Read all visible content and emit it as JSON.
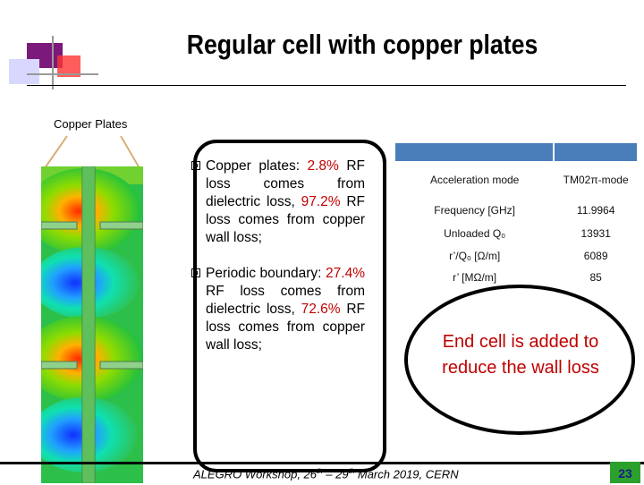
{
  "title": "Regular cell with copper plates",
  "copper_label": "Copper Plates",
  "bullets": {
    "b1_a": "Copper  plates: ",
    "b1_b": "2.8%",
    "b1_c": " RF loss comes from dielectric loss, ",
    "b1_d": "97.2%",
    "b1_e": " RF loss comes from copper wall loss;",
    "b2_a": "Periodic      boundary: ",
    "b2_b": "27.4%",
    "b2_c": " RF loss comes from dielectric loss, ",
    "b2_d": "72.6%",
    "b2_e": " RF loss comes from copper wall loss;"
  },
  "table": {
    "rows": [
      {
        "label": "Acceleration mode",
        "value": "TM02π-mode"
      },
      {
        "label": "Frequency [GHz]",
        "value": "11.9964"
      },
      {
        "label": "Unloaded Q₀",
        "value": "13931"
      },
      {
        "label": "r’/Q₀ [Ω/m]",
        "value": "6089"
      },
      {
        "label": "r’ [MΩ/m]",
        "value": "85"
      }
    ]
  },
  "end_cell_note": "End cell is added to reduce the wall loss",
  "footer": {
    "prefix": "ALEGRO Workshop, 26",
    "sup1": "th",
    "mid": " – 29",
    "sup2": "th",
    "suffix": " March 2019, CERN"
  },
  "page_number": "23",
  "colors": {
    "accent_red": "#c00000",
    "table_header": "#4a7ebb",
    "page_badge": "#2ca02c",
    "deco_purple": "#7b1a7b"
  }
}
